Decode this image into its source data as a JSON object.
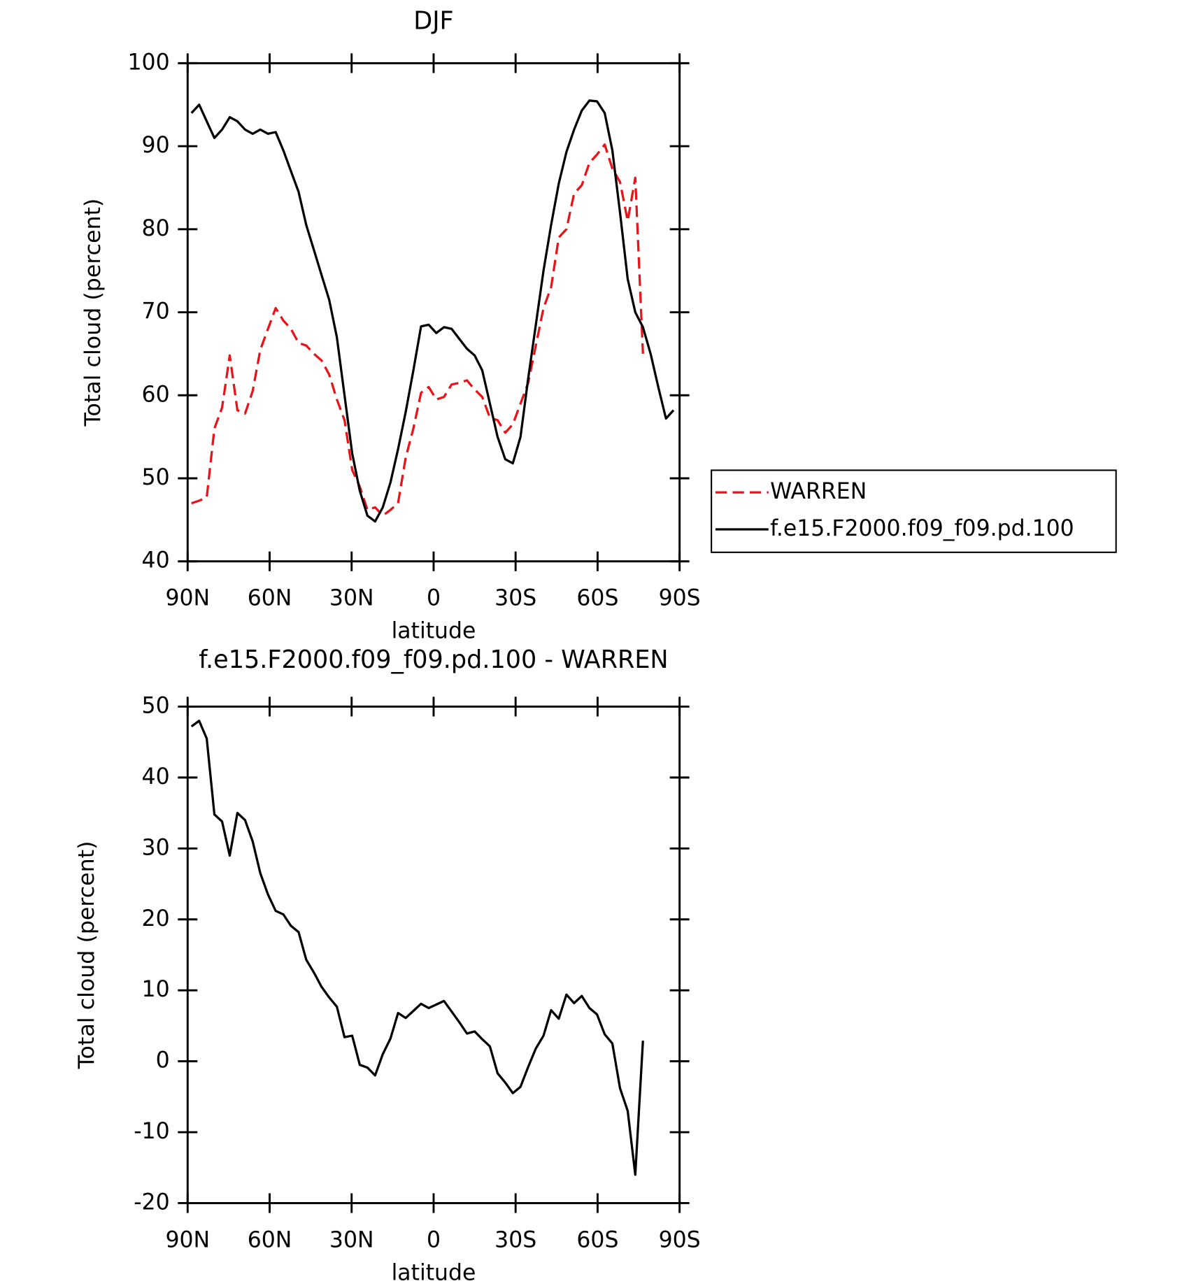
{
  "chart_data": [
    {
      "type": "line",
      "title": "DJF",
      "x_label": "latitude",
      "y_label": "Total cloud (percent)",
      "x": [
        88.6,
        85.8,
        83.0,
        80.2,
        77.4,
        74.6,
        71.8,
        69.0,
        66.2,
        63.4,
        60.6,
        57.8,
        55.0,
        52.2,
        49.4,
        46.6,
        43.8,
        41.0,
        38.2,
        35.4,
        32.6,
        29.8,
        27.0,
        24.2,
        21.4,
        18.6,
        15.8,
        13.0,
        10.2,
        7.4,
        4.6,
        1.8,
        -1.0,
        -3.8,
        -6.6,
        -9.4,
        -12.2,
        -15.0,
        -17.8,
        -20.6,
        -23.4,
        -26.2,
        -29.0,
        -31.8,
        -34.6,
        -37.4,
        -40.2,
        -43.0,
        -45.8,
        -48.6,
        -51.4,
        -54.2,
        -57.0,
        -59.8,
        -62.6,
        -65.4,
        -68.2,
        -71.0,
        -73.8,
        -76.6,
        -79.4,
        -82.2,
        -85.0,
        -87.8
      ],
      "series": [
        {
          "name": "WARREN",
          "color": "#e8141a",
          "line_style": "dashed",
          "values": [
            47,
            47.3,
            47.7,
            56,
            58.5,
            64.8,
            58.2,
            57.8,
            60.5,
            65.5,
            68,
            70.5,
            69,
            68,
            66.3,
            66,
            65,
            64.2,
            62.5,
            59.5,
            57,
            51,
            49,
            46.2,
            46.5,
            45.5,
            46.2,
            47,
            52.5,
            56,
            60.3,
            61,
            59.5,
            59.8,
            61.3,
            61.5,
            61.8,
            60.7,
            59.8,
            57.3,
            57,
            55.5,
            56.5,
            59,
            61.5,
            66,
            70.5,
            73,
            79,
            80,
            84.3,
            85.3,
            88,
            89,
            90.2,
            87.3,
            85.7,
            81,
            86.2,
            65,
            null,
            null,
            null,
            null
          ]
        },
        {
          "name": "f.e15.F2000.f09_f09.pd.100",
          "color": "#000000",
          "line_style": "solid",
          "values": [
            94,
            95,
            93,
            91,
            92,
            93.5,
            93,
            92,
            91.5,
            92,
            91.5,
            91.7,
            89.5,
            87,
            84.5,
            80.5,
            77.5,
            74.5,
            71.5,
            67,
            60,
            53,
            48.5,
            45.5,
            44.8,
            46.5,
            49.5,
            53.5,
            58,
            63,
            68.3,
            68.5,
            67.5,
            68.2,
            68,
            66.8,
            65.6,
            64.8,
            63,
            59,
            55,
            52.3,
            51.8,
            55,
            62,
            68.5,
            75,
            80.5,
            85.5,
            89.3,
            92,
            94.3,
            95.5,
            95.4,
            94,
            89.5,
            82,
            74,
            70,
            68.2,
            65,
            61,
            57.2,
            58.2
          ]
        }
      ],
      "xlim": [
        90,
        -90
      ],
      "xticks": [
        {
          "value": 90,
          "label": "90N"
        },
        {
          "value": 60,
          "label": "60N"
        },
        {
          "value": 30,
          "label": "30N"
        },
        0,
        {
          "value": -30,
          "label": "30S"
        },
        {
          "value": -60,
          "label": "60S"
        },
        {
          "value": -90,
          "label": "90S"
        }
      ],
      "ylim": [
        40,
        100
      ],
      "yticks": [
        40,
        50,
        60,
        70,
        80,
        90,
        100
      ],
      "legend": "outside-right"
    },
    {
      "type": "line",
      "title": "f.e15.F2000.f09_f09.pd.100 - WARREN",
      "x_label": "latitude",
      "y_label": "Total cloud (percent)",
      "x": [
        88.6,
        85.8,
        83.0,
        80.2,
        77.4,
        74.6,
        71.8,
        69.0,
        66.2,
        63.4,
        60.6,
        57.8,
        55.0,
        52.2,
        49.4,
        46.6,
        43.8,
        41.0,
        38.2,
        35.4,
        32.6,
        29.8,
        27.0,
        24.2,
        21.4,
        18.6,
        15.8,
        13.0,
        10.2,
        7.4,
        4.6,
        1.8,
        -1.0,
        -3.8,
        -6.6,
        -9.4,
        -12.2,
        -15.0,
        -17.8,
        -20.6,
        -23.4,
        -26.2,
        -29.0,
        -31.8,
        -34.6,
        -37.4,
        -40.2,
        -43.0,
        -45.8,
        -48.6,
        -51.4,
        -54.2,
        -57.0,
        -59.8,
        -62.6,
        -65.4,
        -68.2,
        -71.0,
        -73.8,
        -76.6,
        -79.4,
        -82.2,
        -85.0,
        -87.8
      ],
      "color": "#000000",
      "values": [
        47.2,
        48,
        45.5,
        34.8,
        33.8,
        29,
        35,
        34,
        31,
        26.5,
        23.5,
        21.2,
        20.7,
        19.1,
        18.2,
        14.3,
        12.5,
        10.5,
        9,
        7.7,
        3.4,
        3.6,
        -0.5,
        -0.9,
        -2,
        1,
        3.2,
        6.8,
        6.1,
        7.1,
        8.1,
        7.5,
        8,
        8.5,
        7,
        5.5,
        3.9,
        4.2,
        3.1,
        2.1,
        -1.7,
        -3,
        -4.5,
        -3.6,
        -0.8,
        1.8,
        3.6,
        7.2,
        6,
        9.4,
        8.2,
        9.2,
        7.5,
        6.6,
        3.8,
        2.5,
        -3.8,
        -7,
        -16,
        2.9,
        null,
        null,
        null,
        null
      ],
      "xlim": [
        90,
        -90
      ],
      "xticks": [
        {
          "value": 90,
          "label": "90N"
        },
        {
          "value": 60,
          "label": "60N"
        },
        {
          "value": 30,
          "label": "30N"
        },
        0,
        {
          "value": -30,
          "label": "30S"
        },
        {
          "value": -60,
          "label": "60S"
        },
        {
          "value": -90,
          "label": "90S"
        }
      ],
      "ylim": [
        -20,
        50
      ],
      "yticks": [
        -20,
        -10,
        0,
        10,
        20,
        30,
        40,
        50
      ]
    }
  ]
}
